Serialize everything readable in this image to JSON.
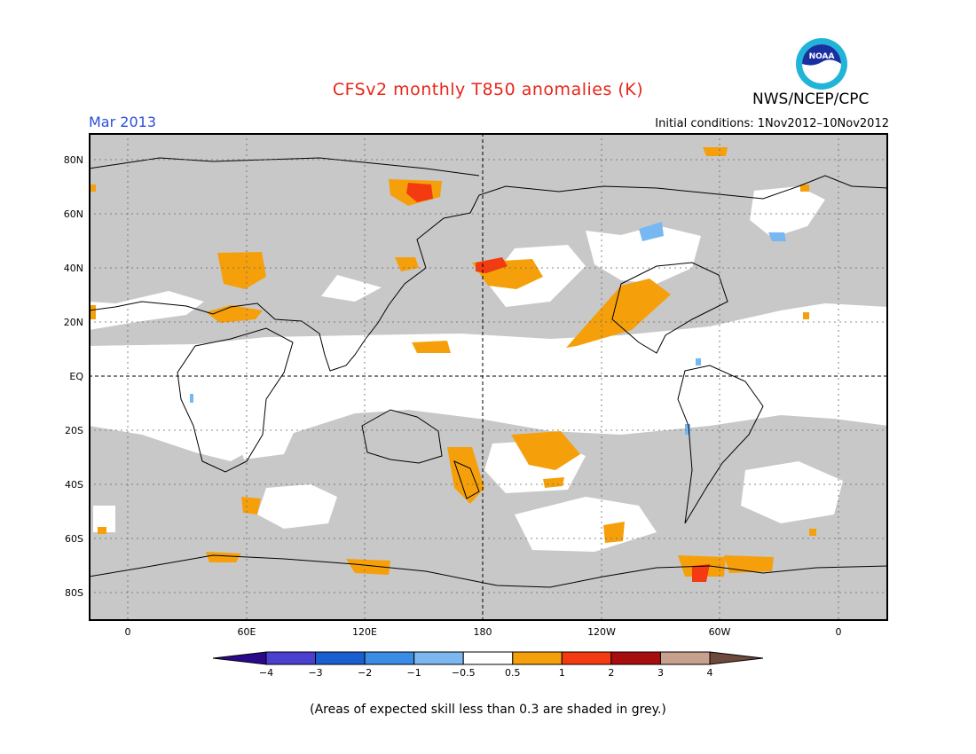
{
  "header": {
    "title": "CFSv2 monthly T850 anomalies (K)",
    "month": "Mar 2013",
    "initial_conditions": "Initial conditions: 1Nov2012–10Nov2012",
    "agency": "NWS/NCEP/CPC",
    "logo_text": "NOAA"
  },
  "map": {
    "lat_labels": [
      "80N",
      "60N",
      "40N",
      "20N",
      "EQ",
      "20S",
      "40S",
      "60S",
      "80S"
    ],
    "lon_labels": [
      "0",
      "60E",
      "120E",
      "180",
      "120W",
      "60W",
      "0"
    ],
    "colors": {
      "low_skill_grey": "#c8c8c8",
      "neutral_white": "#ffffff",
      "anom_0_5_to_1": "#f5a00a",
      "anom_1_to_2": "#f33a10",
      "anom_neg_0_5_to_1": "#78b8f2"
    }
  },
  "colorbar": {
    "tick_labels": [
      "−4",
      "−3",
      "−2",
      "−1",
      "−0.5",
      "0.5",
      "1",
      "2",
      "3",
      "4"
    ],
    "colors": [
      "#2a0a8a",
      "#4b3fd0",
      "#1a5fd2",
      "#3a8de6",
      "#7cb7f0",
      "#ffffff",
      "#f5a00a",
      "#f33a10",
      "#a80e0e",
      "#c8a08e",
      "#6e4a3c"
    ]
  },
  "footnote": "(Areas of expected skill less than 0.3 are shaded in grey.)"
}
